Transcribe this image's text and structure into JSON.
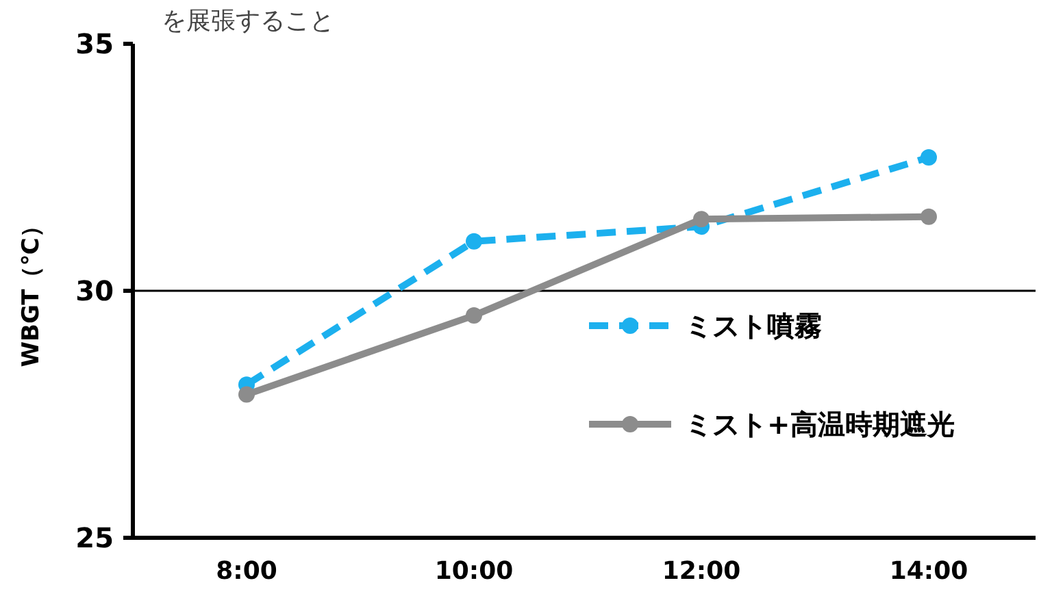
{
  "chart_data": {
    "type": "line",
    "ylabel": "WBGT（℃）",
    "annotations": [
      "を展張すること"
    ],
    "categories": [
      "8:00",
      "10:00",
      "12:00",
      "14:00"
    ],
    "series": [
      {
        "name": "ミスト噴霧",
        "color": "#1cb0ee",
        "line_style": "dashed",
        "values": [
          28.1,
          31.0,
          31.3,
          32.7
        ]
      },
      {
        "name": "ミスト+高温時期遮光",
        "color": "#8c8c8c",
        "line_style": "solid",
        "values": [
          27.9,
          29.5,
          31.45,
          31.5
        ]
      }
    ],
    "ylim": [
      25,
      35
    ],
    "yticks": [
      25,
      30,
      35
    ],
    "ref_lines": [
      {
        "axis": "y",
        "value": 30
      }
    ],
    "marker": "circle",
    "legend": "right",
    "grid": false
  }
}
